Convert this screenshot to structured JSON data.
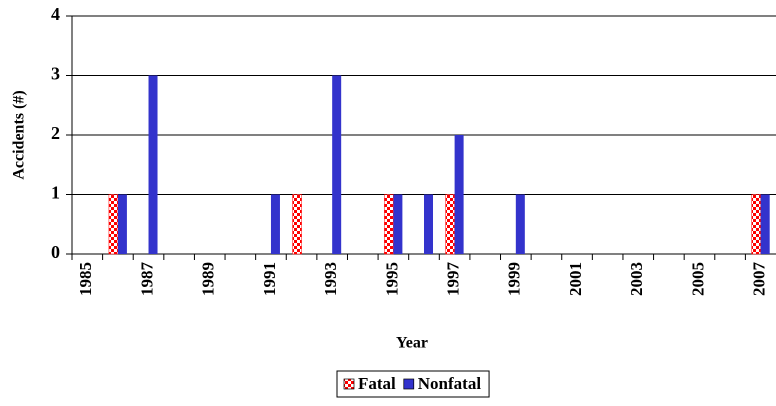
{
  "chart_data": {
    "type": "bar",
    "categories": [
      "1985",
      null,
      "1987",
      null,
      "1989",
      null,
      "1991",
      null,
      "1993",
      null,
      "1995",
      null,
      "1997",
      null,
      "1999",
      null,
      "2001",
      null,
      "2003",
      null,
      "2005",
      null,
      "2007"
    ],
    "series": [
      {
        "name": "Fatal",
        "color": "#ff0000",
        "values": [
          0,
          1,
          0,
          0,
          0,
          0,
          0,
          1,
          0,
          0,
          1,
          0,
          1,
          0,
          0,
          0,
          0,
          0,
          0,
          0,
          0,
          0,
          1
        ]
      },
      {
        "name": "Nonfatal",
        "color": "#3333cc",
        "values": [
          0,
          1,
          3,
          0,
          0,
          0,
          1,
          0,
          3,
          0,
          1,
          1,
          2,
          0,
          1,
          0,
          0,
          0,
          0,
          0,
          0,
          0,
          1
        ]
      }
    ],
    "x_label": "Year",
    "y_label": "Accidents (#)",
    "ylim": [
      0,
      4
    ],
    "yticks": [
      0,
      1,
      2,
      3,
      4
    ],
    "grid": true,
    "legend": "bottom"
  }
}
